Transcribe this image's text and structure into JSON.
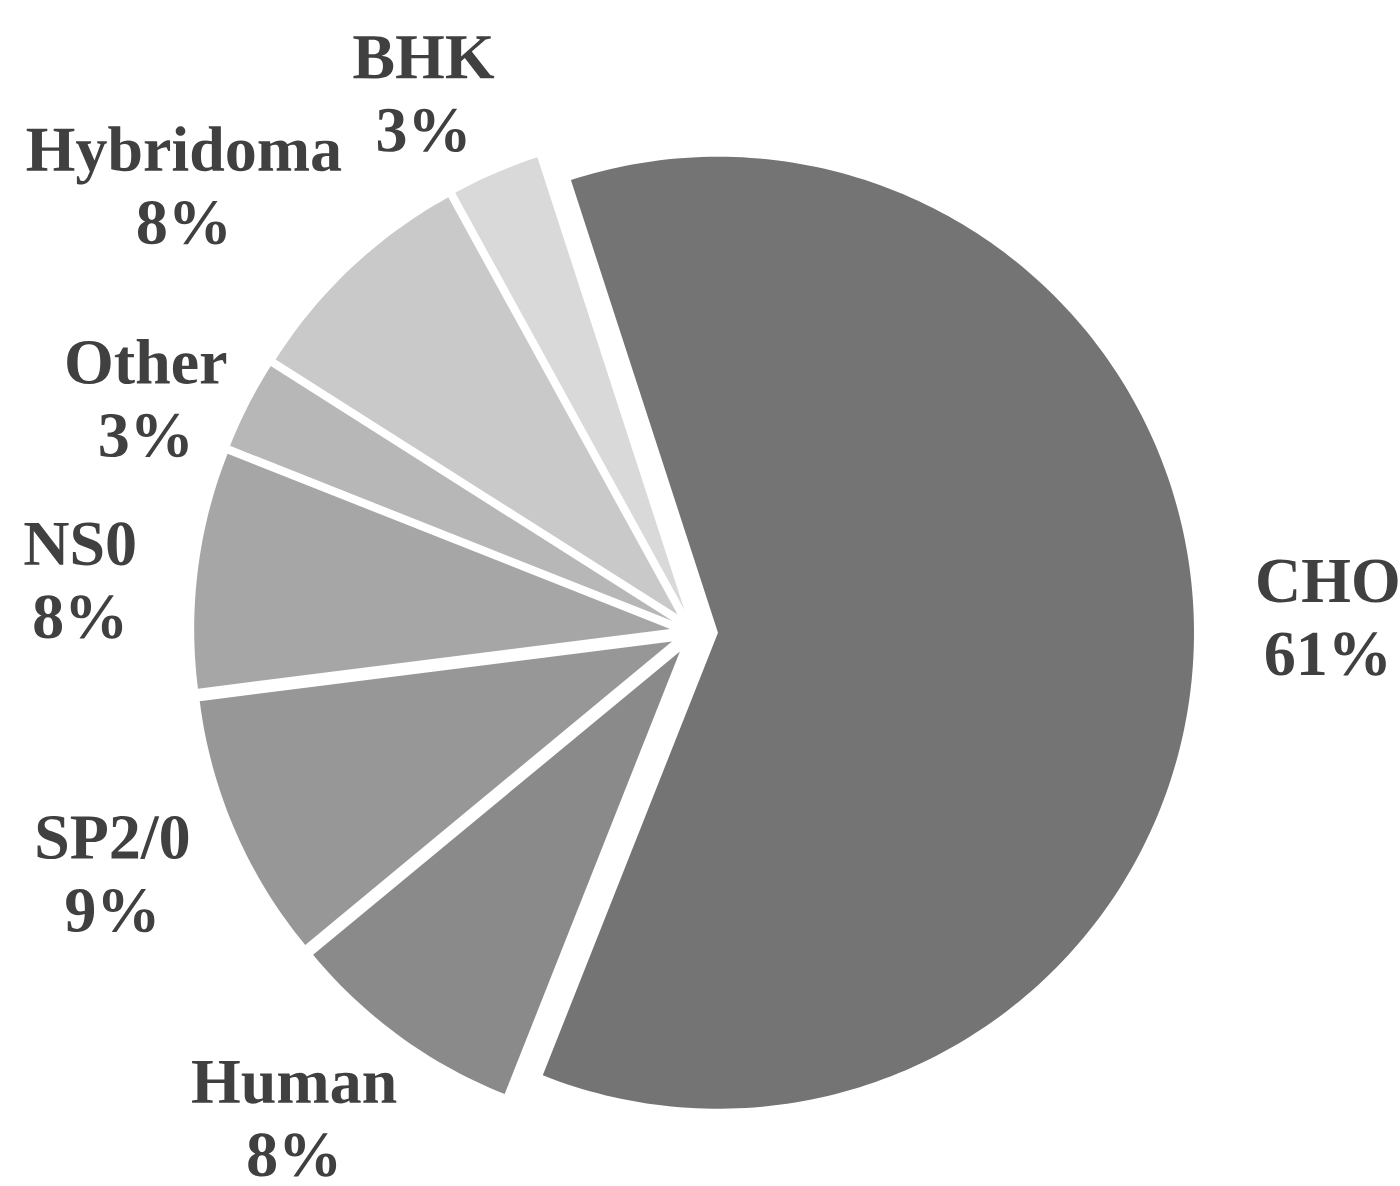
{
  "chart_data": {
    "type": "pie",
    "categories": [
      "CHO",
      "Human",
      "SP2/0",
      "NS0",
      "Other",
      "Hybridoma",
      "BHK"
    ],
    "values": [
      61,
      8,
      9,
      8,
      3,
      8,
      3
    ],
    "value_labels": [
      "61%",
      "8%",
      "9%",
      "8%",
      "3%",
      "8%",
      "3%"
    ],
    "colors": [
      "#747474",
      "#8a8a8a",
      "#979797",
      "#a6a6a6",
      "#b7b7b7",
      "#c9c9c9",
      "#d9d9d9"
    ]
  }
}
